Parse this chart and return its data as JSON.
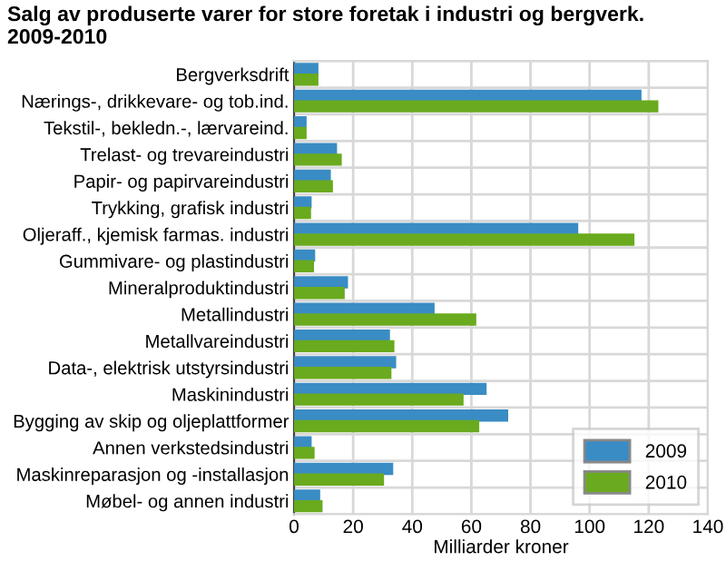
{
  "chart_data": {
    "type": "bar",
    "orientation": "horizontal",
    "title": "Salg av produserte varer for store foretak i industri og bergverk.\n2009-2010",
    "xlabel": "Milliarder kroner",
    "categories": [
      "Bergverksdrift",
      "Nærings-, drikkevare- og tob.ind.",
      "Tekstil-, bekledn.-, lærvareind.",
      "Trelast- og trevareindustri",
      "Papir- og papirvareindustri",
      "Trykking, grafisk industri",
      "Oljeraff., kjemisk farmas. industri",
      "Gummivare- og plastindustri",
      "Mineralproduktindustri",
      "Metallindustri",
      "Metallvareindustri",
      "Data-, elektrisk utstyrsindustri",
      "Maskinindustri",
      "Bygging av skip og oljeplattformer",
      "Annen verkstedsindustri",
      "Maskinreparasjon og -installasjon",
      "Møbel- og annen industri"
    ],
    "series": [
      {
        "name": "2009",
        "color": "#3a8cc4",
        "values": [
          8,
          117.3,
          4,
          14.3,
          12.2,
          5.7,
          95.9,
          6.9,
          18,
          47.3,
          32.2,
          34.3,
          64.9,
          72.2,
          5.7,
          33.3,
          8.6
        ]
      },
      {
        "name": "2010",
        "color": "#6aaa1e",
        "values": [
          8,
          123,
          4,
          15.9,
          12.9,
          5.5,
          114.9,
          6.5,
          16.9,
          61.4,
          33.7,
          32.7,
          57.1,
          62.4,
          6.7,
          30.2,
          9.4
        ]
      }
    ],
    "xlim": [
      0,
      140
    ],
    "xticks": [
      0,
      20,
      40,
      60,
      80,
      100,
      120,
      140
    ],
    "grid": true,
    "legend": "bottom right"
  }
}
